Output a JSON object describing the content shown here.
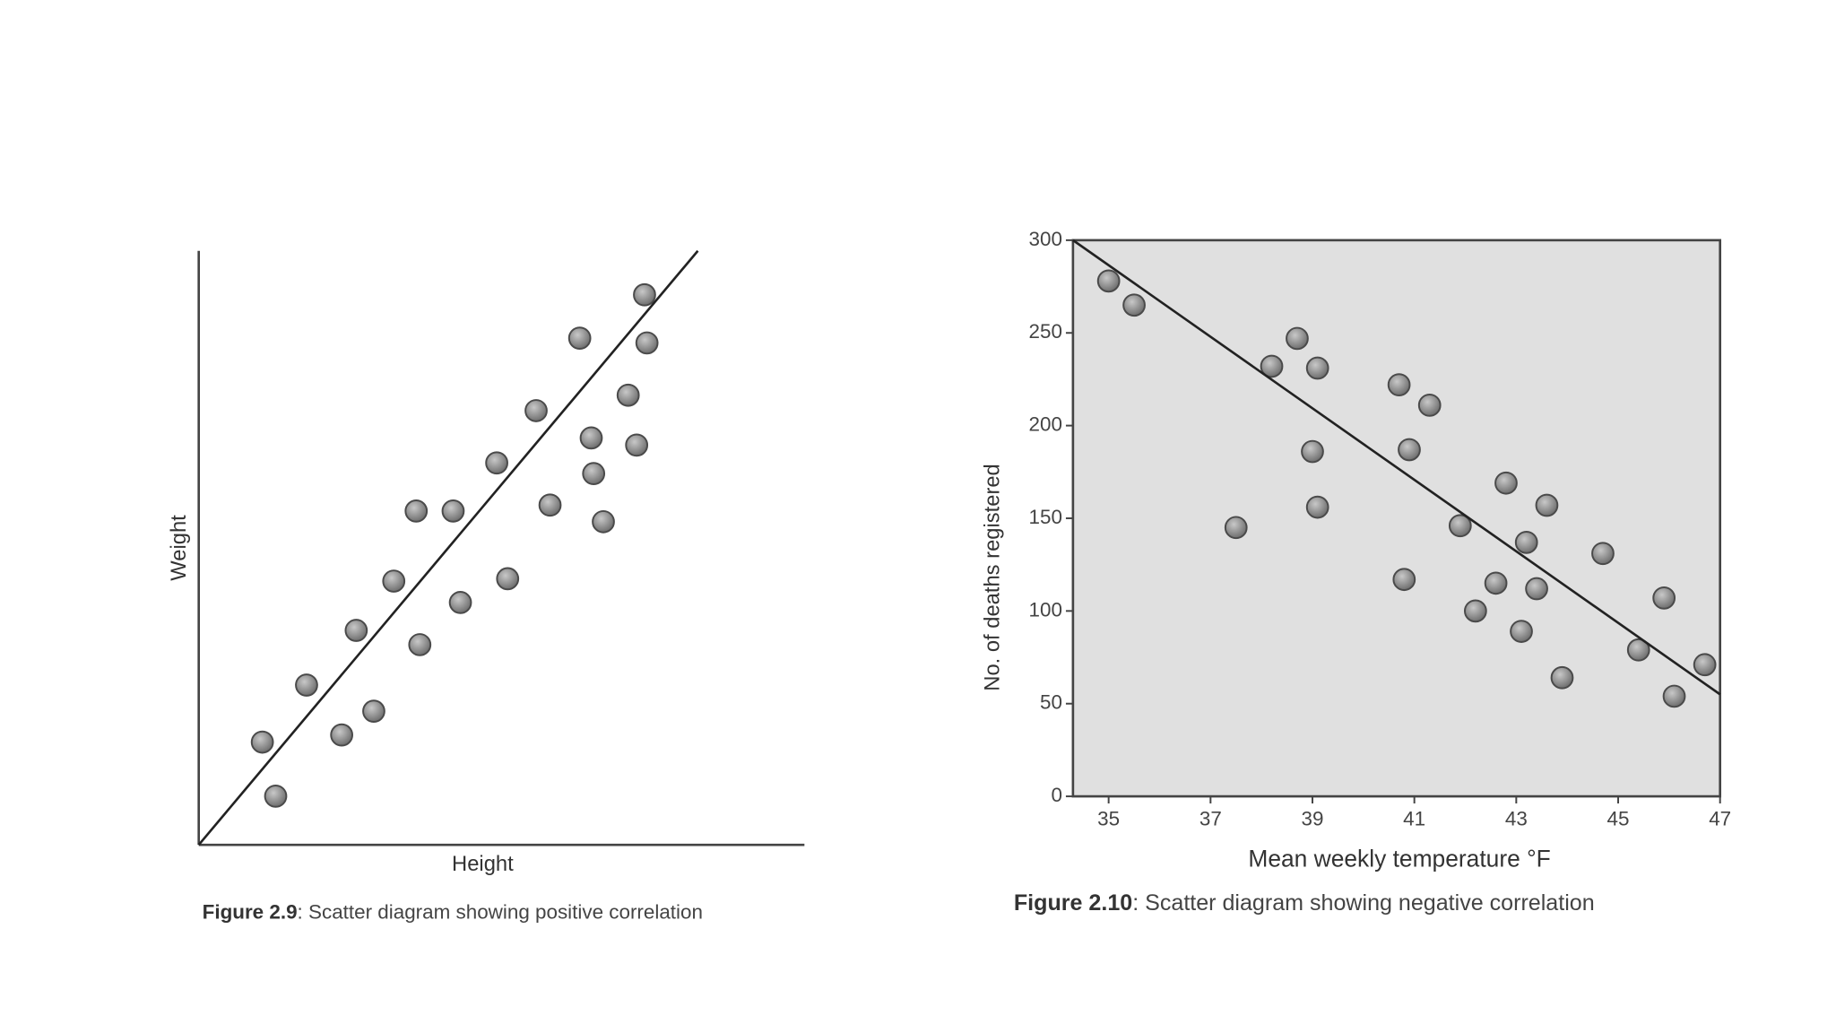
{
  "chart_data": [
    {
      "type": "scatter",
      "xlabel": "Height",
      "ylabel": "Weight",
      "caption_label": "Figure 2.9",
      "caption_text": ": Scatter diagram showing positive correlation",
      "xlim": [
        0,
        100
      ],
      "ylim": [
        0,
        100
      ],
      "color": "#8c8c8c",
      "x": [
        10.5,
        12.7,
        17.8,
        23.6,
        26.0,
        28.9,
        32.2,
        35.9,
        36.5,
        42.0,
        43.2,
        49.2,
        51.0,
        55.7,
        58.0,
        62.9,
        64.8,
        65.2,
        66.8,
        70.9,
        72.3,
        73.6,
        74.0
      ],
      "values": [
        17.3,
        8.2,
        26.9,
        18.5,
        36.1,
        22.5,
        44.4,
        56.2,
        33.7,
        56.2,
        40.8,
        64.3,
        44.8,
        73.1,
        57.2,
        85.3,
        68.5,
        62.5,
        54.4,
        75.7,
        67.3,
        92.6,
        84.5
      ],
      "trend_line": {
        "x": [
          0,
          82.4
        ],
        "y": [
          0,
          100
        ]
      }
    },
    {
      "type": "scatter",
      "xlabel": "Mean weekly temperature °F",
      "ylabel": "No. of deaths registered",
      "caption_label": "Figure 2.10",
      "caption_text": ": Scatter diagram showing negative correlation",
      "xlim": [
        34.3,
        47
      ],
      "ylim": [
        0,
        300
      ],
      "xticks": [
        35,
        37,
        39,
        41,
        43,
        45,
        47
      ],
      "yticks": [
        0,
        50,
        100,
        150,
        200,
        250,
        300
      ],
      "color": "#8c8c8c",
      "background": "#e0e0e0",
      "x": [
        35.0,
        35.5,
        37.5,
        38.2,
        38.7,
        39.1,
        39.0,
        39.1,
        40.7,
        40.9,
        40.8,
        41.3,
        41.9,
        42.2,
        42.6,
        42.8,
        43.1,
        43.2,
        43.4,
        43.6,
        43.9,
        44.7,
        45.4,
        45.9,
        46.1,
        46.7
      ],
      "values": [
        278,
        265,
        145,
        232,
        247,
        231,
        186,
        156,
        222,
        187,
        117,
        211,
        146,
        100,
        115,
        169,
        89,
        137,
        112,
        157,
        64,
        131,
        79,
        107,
        54,
        71
      ],
      "trend_line": {
        "x": [
          34.3,
          47
        ],
        "y": [
          300,
          55
        ]
      }
    }
  ]
}
